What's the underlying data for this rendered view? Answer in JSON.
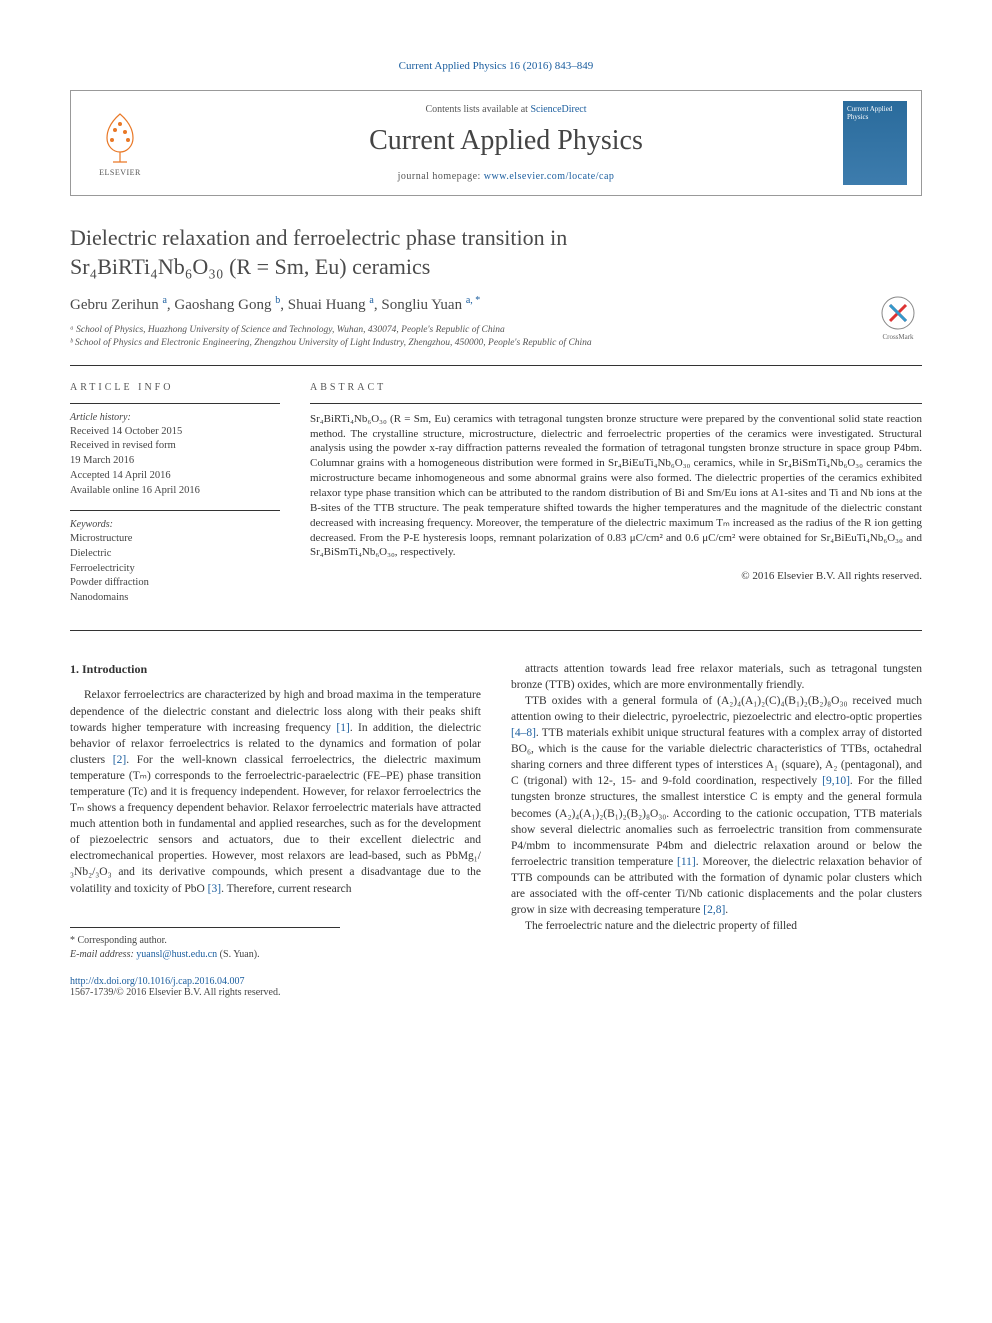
{
  "citation": "Current Applied Physics 16 (2016) 843–849",
  "header": {
    "contents_prefix": "Contents lists available at ",
    "contents_link": "ScienceDirect",
    "journal_name": "Current Applied Physics",
    "homepage_prefix": "journal homepage: ",
    "homepage_url": "www.elsevier.com/locate/cap",
    "elsevier_label": "ELSEVIER",
    "cover_text": "Current Applied Physics"
  },
  "crossmark_label": "CrossMark",
  "title_line1": "Dielectric relaxation and ferroelectric phase transition in",
  "title_line2": "Sr₄BiRTi₄Nb₆O₃₀ (R = Sm, Eu) ceramics",
  "authors_html": "Gebru Zerihun <sup>a</sup>, Gaoshang Gong <sup>b</sup>, Shuai Huang <sup>a</sup>, Songliu Yuan <sup>a, *</sup>",
  "affiliations": [
    "ᵃ School of Physics, Huazhong University of Science and Technology, Wuhan, 430074, People's Republic of China",
    "ᵇ School of Physics and Electronic Engineering, Zhengzhou University of Light Industry, Zhengzhou, 450000, People's Republic of China"
  ],
  "info": {
    "article_info_head": "ARTICLE INFO",
    "abstract_head": "ABSTRACT",
    "history_label": "Article history:",
    "history": [
      "Received 14 October 2015",
      "Received in revised form",
      "19 March 2016",
      "Accepted 14 April 2016",
      "Available online 16 April 2016"
    ],
    "keywords_label": "Keywords:",
    "keywords": [
      "Microstructure",
      "Dielectric",
      "Ferroelectricity",
      "Powder diffraction",
      "Nanodomains"
    ]
  },
  "abstract": "Sr₄BiRTi₄Nb₆O₃₀ (R = Sm, Eu) ceramics with tetragonal tungsten bronze structure were prepared by the conventional solid state reaction method. The crystalline structure, microstructure, dielectric and ferroelectric properties of the ceramics were investigated. Structural analysis using the powder x-ray diffraction patterns revealed the formation of tetragonal tungsten bronze structure in space group P4bm. Columnar grains with a homogeneous distribution were formed in Sr₄BiEuTi₄Nb₆O₃₀ ceramics, while in Sr₄BiSmTi₄Nb₆O₃₀ ceramics the microstructure became inhomogeneous and some abnormal grains were also formed. The dielectric properties of the ceramics exhibited relaxor type phase transition which can be attributed to the random distribution of Bi and Sm/Eu ions at A1-sites and Ti and Nb ions at the B-sites of the TTB structure. The peak temperature shifted towards the higher temperatures and the magnitude of the dielectric constant decreased with increasing frequency. Moreover, the temperature of the dielectric maximum Tₘ increased as the radius of the R ion getting decreased. From the P-E hysteresis loops, remnant polarization of 0.83 μC/cm² and 0.6 μC/cm² were obtained for Sr₄BiEuTi₄Nb₆O₃₀ and Sr₄BiSmTi₄Nb₆O₃₀, respectively.",
  "copyright": "© 2016 Elsevier B.V. All rights reserved.",
  "intro_head": "1. Introduction",
  "col1_p1": "Relaxor ferroelectrics are characterized by high and broad maxima in the temperature dependence of the dielectric constant and dielectric loss along with their peaks shift towards higher temperature with increasing frequency [1]. In addition, the dielectric behavior of relaxor ferroelectrics is related to the dynamics and formation of polar clusters [2]. For the well-known classical ferroelectrics, the dielectric maximum temperature (Tₘ) corresponds to the ferroelectric-paraelectric (FE–PE) phase transition temperature (Tc) and it is frequency independent. However, for relaxor ferroelectrics the Tₘ shows a frequency dependent behavior. Relaxor ferroelectric materials have attracted much attention both in fundamental and applied researches, such as for the development of piezoelectric sensors and actuators, due to their excellent dielectric and electromechanical properties. However, most relaxors are lead-based, such as PbMg₁/₃Nb₂/₃O₃ and its derivative compounds, which present a disadvantage due to the volatility and toxicity of PbO [3]. Therefore, current research",
  "col2_p1": "attracts attention towards lead free relaxor materials, such as tetragonal tungsten bronze (TTB) oxides, which are more environmentally friendly.",
  "col2_p2": "TTB oxides with a general formula of (A₂)₄(A₁)₂(C)₄(B₁)₂(B₂)₈O₃₀ received much attention owing to their dielectric, pyroelectric, piezoelectric and electro-optic properties [4–8]. TTB materials exhibit unique structural features with a complex array of distorted BO₆, which is the cause for the variable dielectric characteristics of TTBs, octahedral sharing corners and three different types of interstices A₁ (square), A₂ (pentagonal), and C (trigonal) with 12-, 15- and 9-fold coordination, respectively [9,10]. For the filled tungsten bronze structures, the smallest interstice C is empty and the general formula becomes (A₂)₄(A₁)₂(B₁)₂(B₂)₈O₃₀. According to the cationic occupation, TTB materials show several dielectric anomalies such as ferroelectric transition from commensurate P4/mbm to incommensurate P4bm and dielectric relaxation around or below the ferroelectric transition temperature [11]. Moreover, the dielectric relaxation behavior of TTB compounds can be attributed with the formation of dynamic polar clusters which are associated with the off-center Ti/Nb cationic displacements and the polar clusters grow in size with decreasing temperature [2,8].",
  "col2_p3": "The ferroelectric nature and the dielectric property of filled",
  "footer": {
    "corresponding": "* Corresponding author.",
    "email_label": "E-mail address: ",
    "email": "yuansl@hust.edu.cn",
    "email_suffix": " (S. Yuan).",
    "doi_url": "http://dx.doi.org/10.1016/j.cap.2016.04.007",
    "issn": "1567-1739/© 2016 Elsevier B.V. All rights reserved."
  },
  "colors": {
    "link": "#1a5d9e",
    "elsevier_orange": "#e97826",
    "text": "#333333",
    "border": "#999999"
  }
}
